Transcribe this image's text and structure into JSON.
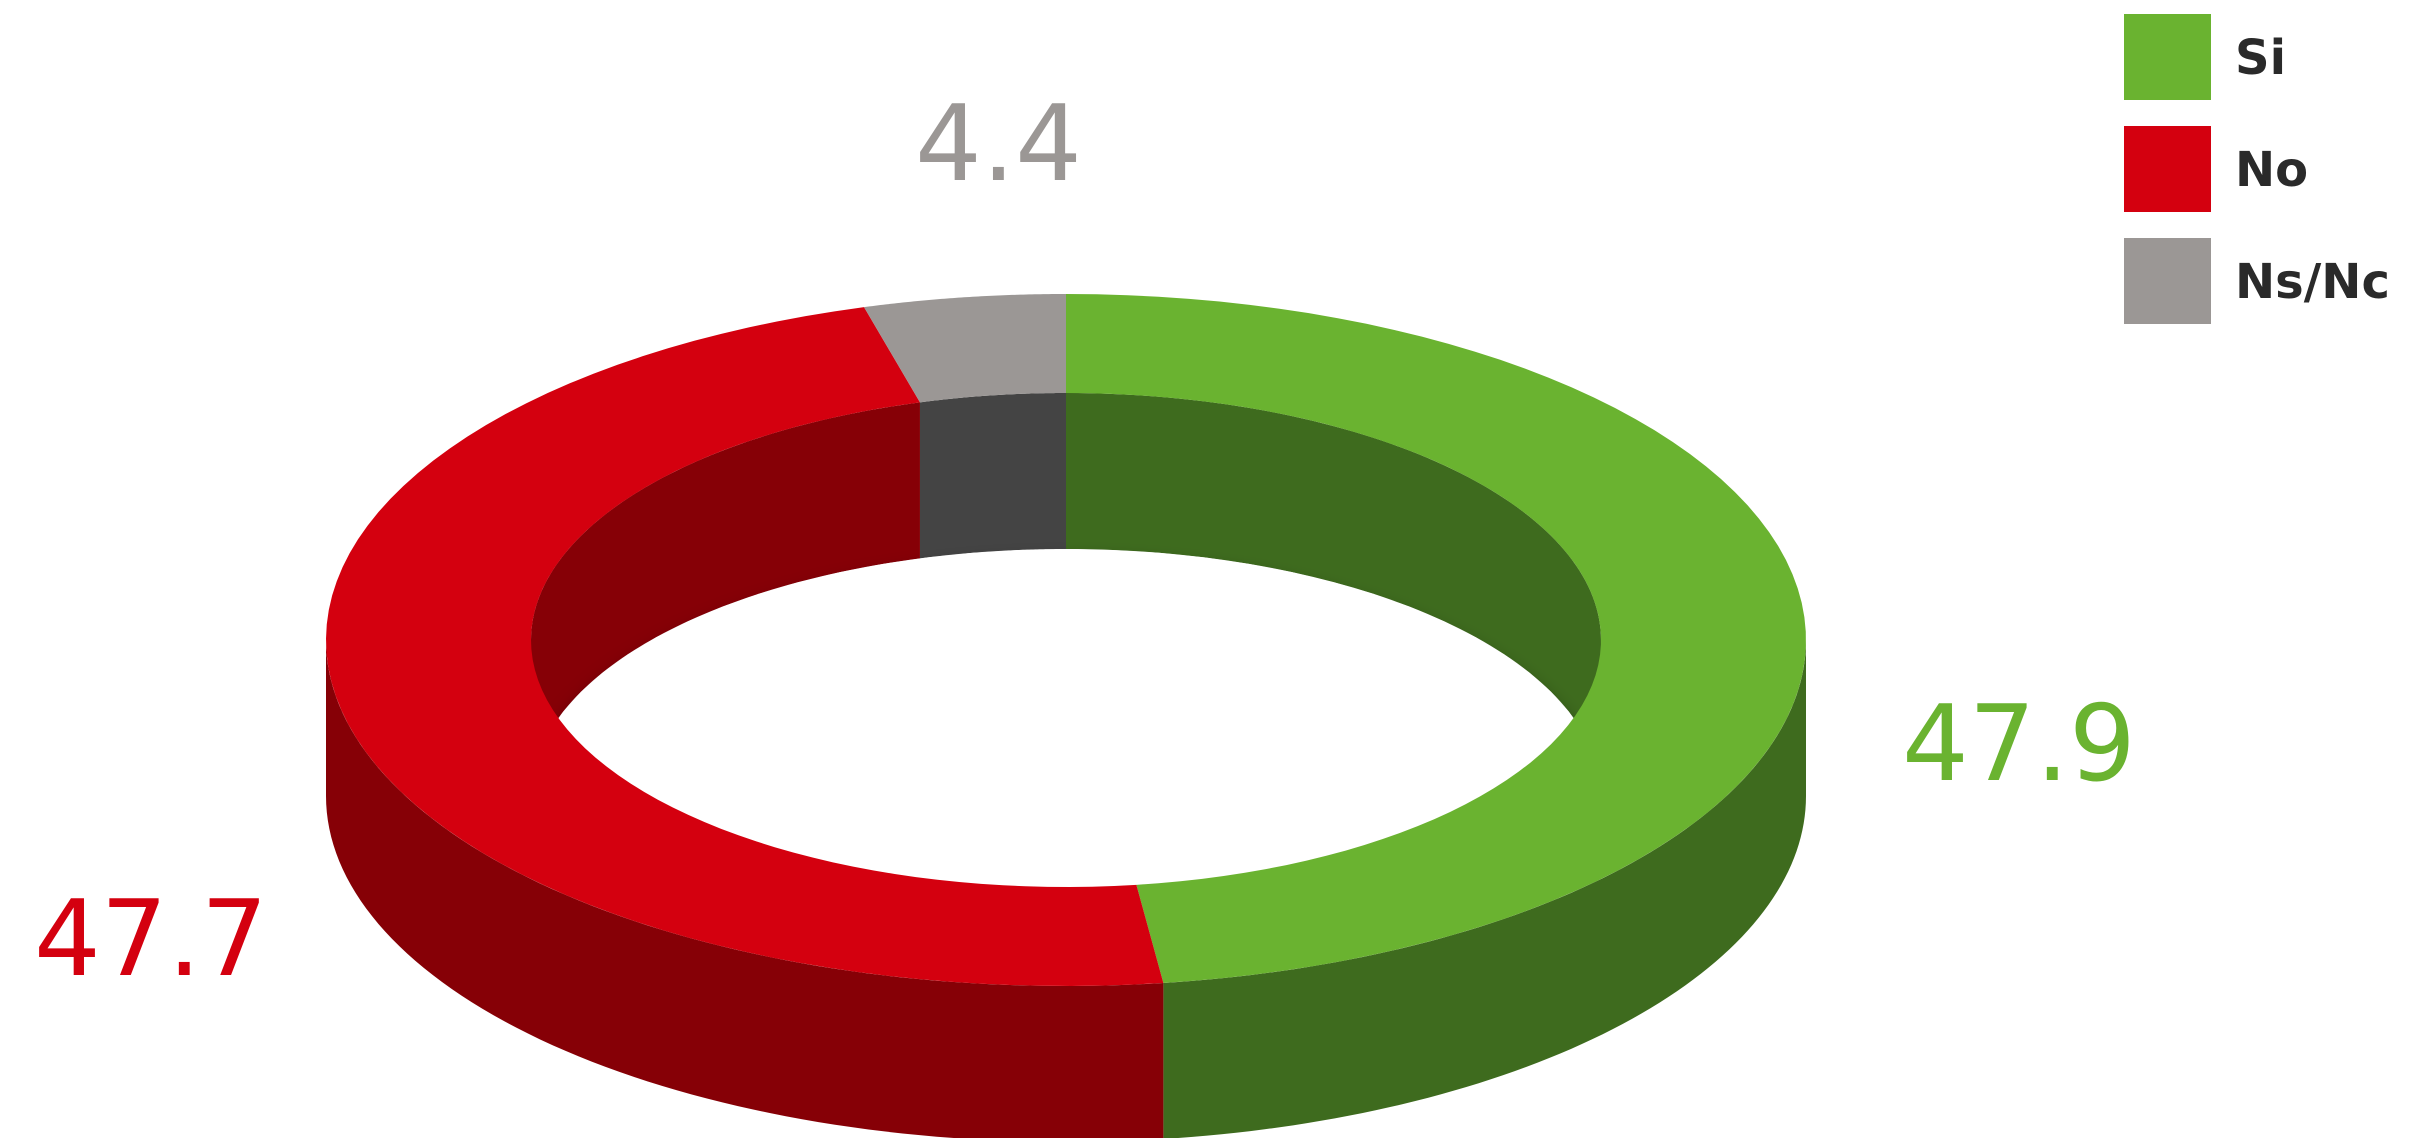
{
  "chart_data": {
    "type": "pie",
    "style": "3d-donut",
    "categories": [
      "Si",
      "No",
      "Ns/Nc"
    ],
    "values": [
      47.9,
      47.7,
      4.4
    ],
    "value_labels": [
      "47.9",
      "47.7",
      "4.4"
    ],
    "colors": [
      "#6ab330",
      "#d4000f",
      "#9b9795"
    ],
    "shade_colors": [
      "#3e6b1e",
      "#860006",
      "#444444"
    ],
    "legend": {
      "position": "top-right",
      "entries": [
        "Si",
        "No",
        "Ns/Nc"
      ]
    }
  }
}
